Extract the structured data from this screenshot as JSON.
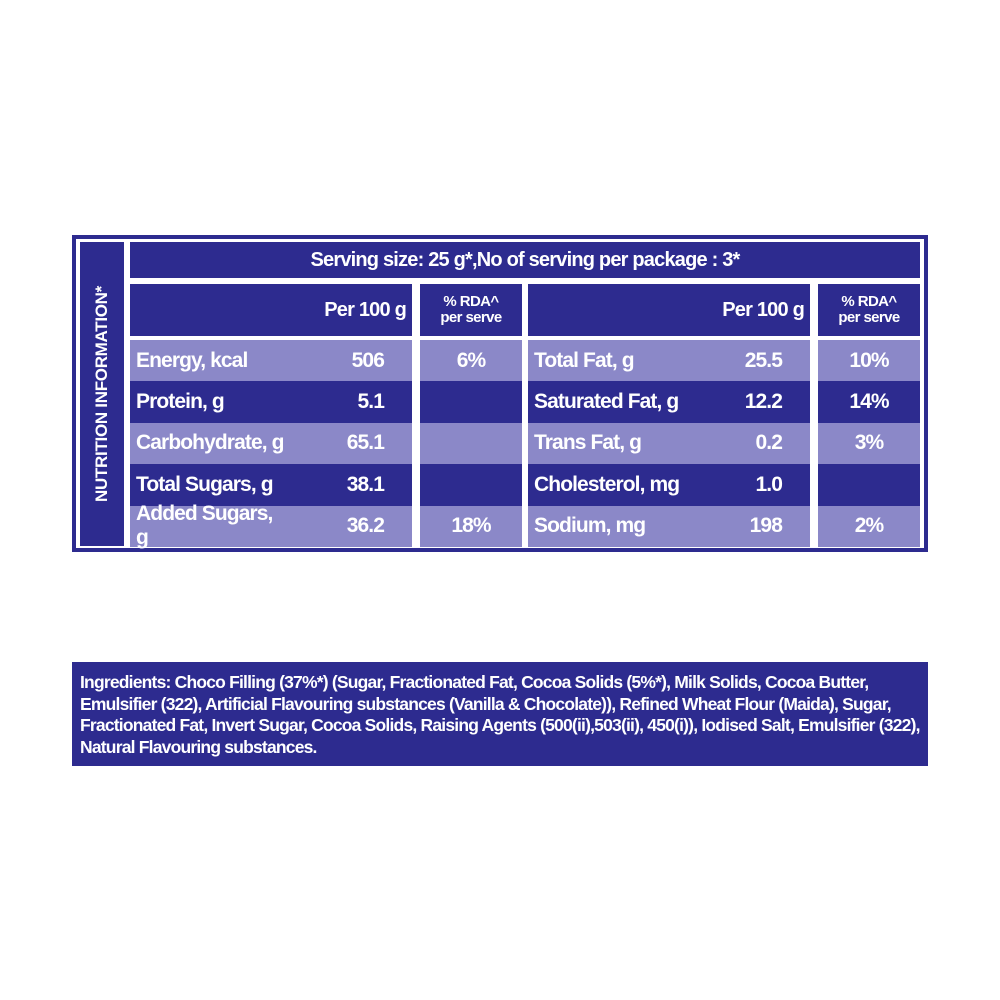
{
  "colors": {
    "dark": "#2d2b8f",
    "light": "#8b88c8",
    "text": "#ffffff"
  },
  "side_title": "NUTRITION INFORMATION*",
  "serving": "Serving size: 25 g*,No of serving per package : 3*",
  "headers": {
    "per100": "Per 100 g",
    "rda_line1": "% RDA^",
    "rda_line2": "per serve"
  },
  "left_rows": [
    {
      "label": "Energy, kcal",
      "value": "506",
      "rda": "6%"
    },
    {
      "label": "Protein, g",
      "value": "5.1",
      "rda": ""
    },
    {
      "label": "Carbohydrate, g",
      "value": "65.1",
      "rda": ""
    },
    {
      "label": "Total Sugars, g",
      "value": "38.1",
      "rda": ""
    },
    {
      "label": "Added Sugars, g",
      "value": "36.2",
      "rda": "18%"
    }
  ],
  "right_rows": [
    {
      "label": "Total Fat, g",
      "value": "25.5",
      "rda": "10%"
    },
    {
      "label": "Saturated Fat, g",
      "value": "12.2",
      "rda": "14%"
    },
    {
      "label": "Trans Fat, g",
      "value": "0.2",
      "rda": "3%"
    },
    {
      "label": "Cholesterol, mg",
      "value": "1.0",
      "rda": ""
    },
    {
      "label": "Sodium, mg",
      "value": "198",
      "rda": "2%"
    }
  ],
  "ingredients": "Ingredients: Choco Filling (37%*) (Sugar, Fractionated Fat, Cocoa Solids (5%*), Milk Solids, Cocoa Butter, Emulsifier (322), Artificial Flavouring substances (Vanilla & Chocolate)), Refined Wheat Flour (Maida), Sugar, Fractionated Fat, Invert Sugar, Cocoa Solids, Raising Agents (500(ii),503(ii), 450(i)), Iodised Salt, Emulsifier (322), Natural Flavouring substances."
}
